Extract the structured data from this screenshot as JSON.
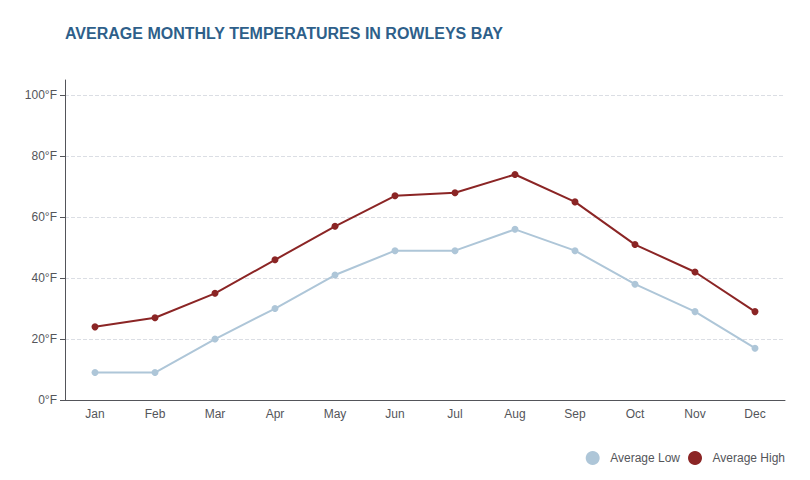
{
  "chart_data": {
    "type": "line",
    "title": "AVERAGE MONTHLY TEMPERATURES IN ROWLEYS BAY",
    "categories": [
      "Jan",
      "Feb",
      "Mar",
      "Apr",
      "May",
      "Jun",
      "Jul",
      "Aug",
      "Sep",
      "Oct",
      "Nov",
      "Dec"
    ],
    "series": [
      {
        "name": "Average Low",
        "color": "#aec6d8",
        "values": [
          9,
          9,
          20,
          30,
          41,
          49,
          49,
          56,
          49,
          38,
          29,
          17
        ]
      },
      {
        "name": "Average High",
        "color": "#8b2525",
        "values": [
          24,
          27,
          35,
          46,
          57,
          67,
          68,
          74,
          65,
          51,
          42,
          29
        ]
      }
    ],
    "ylim": [
      0,
      105
    ],
    "yticks": [
      {
        "value": 0,
        "label": "0°F"
      },
      {
        "value": 20,
        "label": "20°F"
      },
      {
        "value": 40,
        "label": "40°F"
      },
      {
        "value": 60,
        "label": "60°F"
      },
      {
        "value": 80,
        "label": "80°F"
      },
      {
        "value": 100,
        "label": "100°F"
      }
    ],
    "grid": true,
    "legend": "lower right",
    "marker": "circle"
  }
}
